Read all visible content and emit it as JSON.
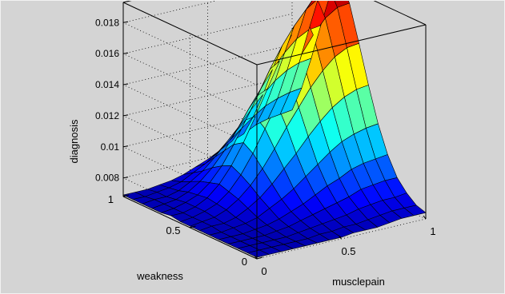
{
  "figure": {
    "background": "#d4d4d4"
  },
  "chart_data": {
    "type": "surface",
    "title": "",
    "xlabel": "musclepain",
    "ylabel": "weakness",
    "zlabel": "diagnosis",
    "xlim": [
      0,
      1
    ],
    "ylim": [
      0,
      1
    ],
    "zlim": [
      0.0068,
      0.0193
    ],
    "xticks": [
      "0",
      "0.5",
      "1"
    ],
    "yticks": [
      "0",
      "0.5",
      "1"
    ],
    "zticks": [
      "0.008",
      "0.01",
      "0.012",
      "0.014",
      "0.016",
      "0.018"
    ],
    "grid": true,
    "colormap": "jet",
    "grid_points": 15,
    "x": [
      0,
      0.0714,
      0.1429,
      0.2143,
      0.2857,
      0.3571,
      0.4286,
      0.5,
      0.5714,
      0.6429,
      0.7143,
      0.7857,
      0.8571,
      0.9286,
      1
    ],
    "y": [
      0,
      0.0714,
      0.1429,
      0.2143,
      0.2857,
      0.3571,
      0.4286,
      0.5,
      0.5714,
      0.6429,
      0.7143,
      0.7857,
      0.8571,
      0.9286,
      1
    ],
    "z": [
      [
        0.0069,
        0.0069,
        0.0069,
        0.0069,
        0.0069,
        0.0069,
        0.0069,
        0.0069,
        0.007,
        0.007,
        0.007,
        0.0071,
        0.0072,
        0.0072,
        0.0072
      ],
      [
        0.0069,
        0.0069,
        0.0069,
        0.0069,
        0.0069,
        0.0069,
        0.007,
        0.007,
        0.0071,
        0.0071,
        0.0072,
        0.0073,
        0.0074,
        0.0074,
        0.0074
      ],
      [
        0.0069,
        0.0069,
        0.0069,
        0.0069,
        0.0069,
        0.007,
        0.0071,
        0.0072,
        0.0073,
        0.0074,
        0.0076,
        0.0077,
        0.0078,
        0.0078,
        0.0079
      ],
      [
        0.0069,
        0.0069,
        0.0069,
        0.0069,
        0.007,
        0.0071,
        0.0073,
        0.0075,
        0.0077,
        0.0079,
        0.0081,
        0.0084,
        0.0085,
        0.0086,
        0.0086
      ],
      [
        0.0069,
        0.0069,
        0.0069,
        0.007,
        0.0071,
        0.0073,
        0.0076,
        0.0079,
        0.0083,
        0.0087,
        0.009,
        0.0094,
        0.0096,
        0.0097,
        0.0098
      ],
      [
        0.0069,
        0.0069,
        0.007,
        0.0071,
        0.0073,
        0.0077,
        0.0081,
        0.0086,
        0.0092,
        0.0098,
        0.0104,
        0.0109,
        0.0112,
        0.0114,
        0.0115
      ],
      [
        0.0069,
        0.007,
        0.007,
        0.0072,
        0.0076,
        0.0081,
        0.0088,
        0.0096,
        0.0104,
        0.0113,
        0.0121,
        0.0128,
        0.0133,
        0.0136,
        0.0137
      ],
      [
        0.0069,
        0.007,
        0.0071,
        0.0074,
        0.0079,
        0.0086,
        0.0095,
        0.0106,
        0.0118,
        0.0129,
        0.014,
        0.0149,
        0.0156,
        0.016,
        0.0161
      ],
      [
        0.0069,
        0.007,
        0.0072,
        0.0075,
        0.0081,
        0.009,
        0.0102,
        0.0116,
        0.013,
        0.0145,
        0.0158,
        0.0169,
        0.0178,
        0.0183,
        0.0184
      ],
      [
        0.007,
        0.007,
        0.0072,
        0.0076,
        0.0083,
        0.0093,
        0.0106,
        0.0121,
        0.0137,
        0.0153,
        0.0168,
        0.018,
        0.019,
        0.0195,
        0.0196
      ],
      [
        0.0069,
        0.007,
        0.0072,
        0.0075,
        0.0081,
        0.009,
        0.0102,
        0.0116,
        0.013,
        0.0145,
        0.0158,
        0.0169,
        0.0178,
        0.0183,
        0.0184
      ],
      [
        0.0069,
        0.007,
        0.0071,
        0.0074,
        0.0079,
        0.0086,
        0.0095,
        0.0106,
        0.0118,
        0.0129,
        0.014,
        0.0149,
        0.0156,
        0.016,
        0.0161
      ],
      [
        0.0069,
        0.007,
        0.007,
        0.0072,
        0.0076,
        0.0081,
        0.0088,
        0.0096,
        0.0104,
        0.0113,
        0.0121,
        0.0128,
        0.0133,
        0.0136,
        0.0137
      ],
      [
        0.0069,
        0.0069,
        0.007,
        0.0071,
        0.0073,
        0.0077,
        0.0081,
        0.0086,
        0.0092,
        0.0098,
        0.0104,
        0.0109,
        0.0112,
        0.0114,
        0.0115
      ],
      [
        0.0069,
        0.0069,
        0.0069,
        0.007,
        0.0071,
        0.0073,
        0.0076,
        0.0079,
        0.0083,
        0.0087,
        0.009,
        0.0094,
        0.0096,
        0.0097,
        0.0098
      ]
    ]
  }
}
